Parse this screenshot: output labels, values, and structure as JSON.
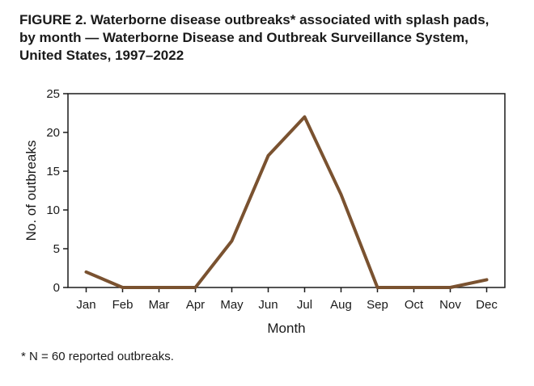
{
  "figure": {
    "title_lines": [
      "FIGURE 2. Waterborne disease outbreaks* associated with splash pads,",
      "by month — Waterborne Disease and Outbreak Surveillance System,",
      "United States, 1997–2022"
    ],
    "footnote": "* N = 60 reported outbreaks."
  },
  "chart_data": {
    "type": "line",
    "title": "FIGURE 2. Waterborne disease outbreaks* associated with splash pads, by month — Waterborne Disease and Outbreak Surveillance System, United States, 1997–2022",
    "xlabel": "Month",
    "ylabel": "No. of outbreaks",
    "categories": [
      "Jan",
      "Feb",
      "Mar",
      "Apr",
      "May",
      "Jun",
      "Jul",
      "Aug",
      "Sep",
      "Oct",
      "Nov",
      "Dec"
    ],
    "series": [
      {
        "values": [
          2,
          0,
          0,
          0,
          6,
          17,
          22,
          12,
          0,
          0,
          0,
          1
        ]
      }
    ],
    "ylim": [
      0,
      25
    ],
    "yticks": [
      0,
      5,
      10,
      15,
      20,
      25
    ],
    "grid": false,
    "line_color": "#7a5230"
  }
}
